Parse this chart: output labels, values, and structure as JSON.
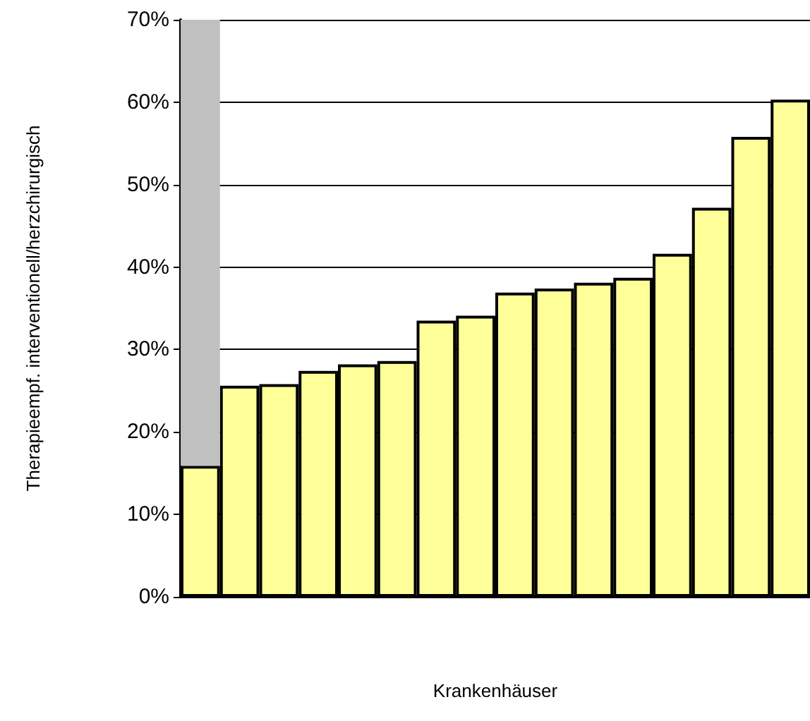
{
  "chart_data": {
    "type": "bar",
    "stacked": true,
    "xlabel": "Krankenhäuser",
    "ylabel": "Therapieempf. interventionell/herzchirurgisch",
    "categories": [
      null,
      null,
      null,
      null,
      null,
      null,
      null,
      null,
      null,
      null,
      null,
      null,
      null,
      null,
      null,
      null
    ],
    "series": [
      {
        "color": "#ffff99",
        "values": [
          15.9,
          25.6,
          25.8,
          27.4,
          28.2,
          28.6,
          33.5,
          34.1,
          36.9,
          37.4,
          38.1,
          38.7,
          41.6,
          47.2,
          55.8,
          60.3
        ]
      },
      {
        "color": "#c0c0c0",
        "values": [
          54.1,
          null,
          null,
          null,
          null,
          null,
          null,
          null,
          null,
          null,
          null,
          null,
          null,
          null,
          null,
          null
        ]
      }
    ],
    "ylim": [
      0,
      70
    ],
    "yticks": [
      {
        "value": 0,
        "label": "0%"
      },
      {
        "value": 10,
        "label": "10%"
      },
      {
        "value": 20,
        "label": "20%"
      },
      {
        "value": 30,
        "label": "30%"
      },
      {
        "value": 40,
        "label": "40%"
      },
      {
        "value": 50,
        "label": "50%"
      },
      {
        "value": 60,
        "label": "60%"
      },
      {
        "value": 70,
        "label": "70%"
      }
    ],
    "grid": "y"
  }
}
